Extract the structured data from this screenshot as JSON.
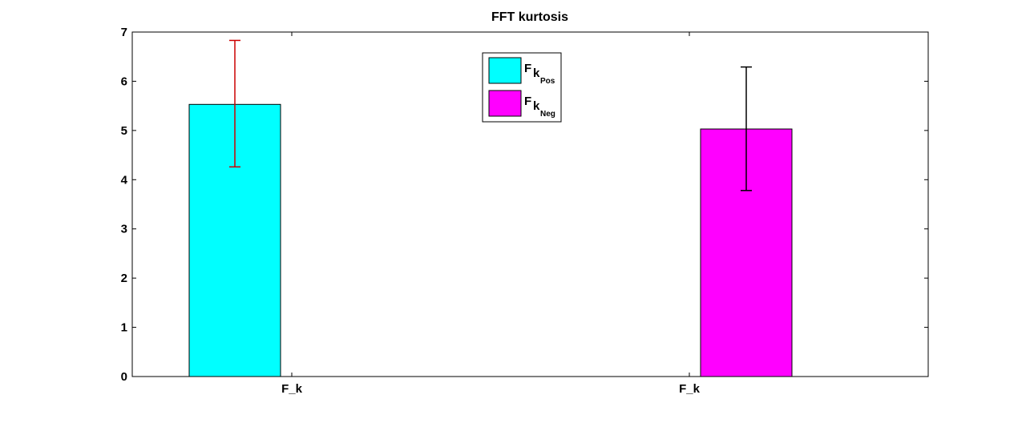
{
  "chart_data": {
    "type": "bar",
    "title": "FFT kurtosis",
    "xlabel": "",
    "ylabel": "",
    "ylim": [
      0,
      7
    ],
    "yticks": [
      0,
      1,
      2,
      3,
      4,
      5,
      6,
      7
    ],
    "categories": [
      "F_k",
      "F_k"
    ],
    "series": [
      {
        "name": "F_k Pos",
        "name_main": "F",
        "name_sub": "k",
        "name_subsub": "Pos",
        "color": "#00ffff",
        "value": 5.53,
        "err_low": 4.26,
        "err_high": 6.83,
        "err_color": "#cc0000",
        "category_index": 0
      },
      {
        "name": "F_k Neg",
        "name_main": "F",
        "name_sub": "k",
        "name_subsub": "Neg",
        "color": "#ff00ff",
        "value": 5.03,
        "err_low": 3.78,
        "err_high": 6.29,
        "err_color": "#000000",
        "category_index": 1
      }
    ],
    "legend_position": "top-center",
    "grid": false
  }
}
